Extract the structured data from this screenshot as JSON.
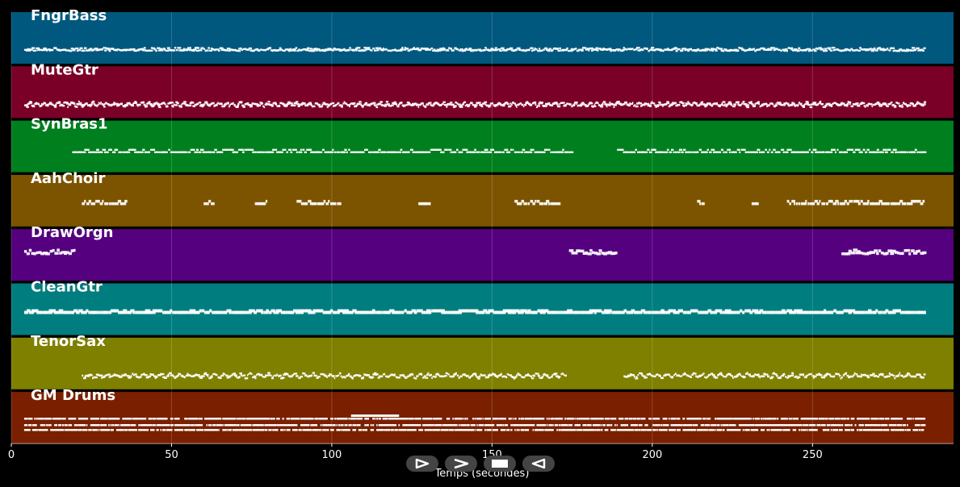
{
  "chart_data": {
    "type": "piano-roll",
    "xlabel": "Temps (secondes)",
    "xlim": [
      0,
      294
    ],
    "xticks": [
      0,
      50,
      100,
      150,
      200,
      250
    ],
    "end_time": 285,
    "grid": true,
    "tracks": [
      {
        "name": "FngrBass",
        "color": "#00587e",
        "segments": [
          [
            4,
            285
          ]
        ],
        "density": 2.2,
        "pattern": "bass"
      },
      {
        "name": "MuteGtr",
        "color": "#7a0028",
        "segments": [
          [
            4,
            285
          ]
        ],
        "density": 3.2,
        "pattern": "wave"
      },
      {
        "name": "SynBras1",
        "color": "#007f1f",
        "segments": [
          [
            19,
            175
          ],
          [
            189,
            285
          ]
        ],
        "density": 1.6,
        "pattern": "line"
      },
      {
        "name": "AahChoir",
        "color": "#7c5400",
        "segments": [
          [
            22,
            36
          ],
          [
            60,
            63
          ],
          [
            76,
            80
          ],
          [
            89,
            103
          ],
          [
            127,
            131
          ],
          [
            157,
            171
          ],
          [
            214,
            216
          ],
          [
            231,
            233
          ],
          [
            242,
            285
          ]
        ],
        "density": 1.4,
        "pattern": "chord"
      },
      {
        "name": "DrawOrgn",
        "color": "#55007f",
        "segments": [
          [
            4,
            20
          ],
          [
            174,
            189
          ],
          [
            259,
            285
          ]
        ],
        "density": 1.4,
        "pattern": "organ"
      },
      {
        "name": "CleanGtr",
        "color": "#007d7f",
        "segments": [
          [
            4,
            285
          ]
        ],
        "density": 1.3,
        "pattern": "dash"
      },
      {
        "name": "TenorSax",
        "color": "#7f7f00",
        "segments": [
          [
            22,
            173
          ],
          [
            191,
            285
          ]
        ],
        "density": 2.5,
        "pattern": "wave"
      },
      {
        "name": "GM Drums",
        "color": "#7a2000",
        "segments": [
          [
            4,
            285
          ]
        ],
        "density": 1.6,
        "pattern": "drums"
      }
    ]
  },
  "controls": {
    "buttons": [
      {
        "name": "play-button",
        "icon": "play-icon"
      },
      {
        "name": "forward-button",
        "icon": "chevron-right-icon"
      },
      {
        "name": "stop-button",
        "icon": "stop-icon"
      },
      {
        "name": "rewind-button",
        "icon": "rewind-icon"
      }
    ]
  }
}
